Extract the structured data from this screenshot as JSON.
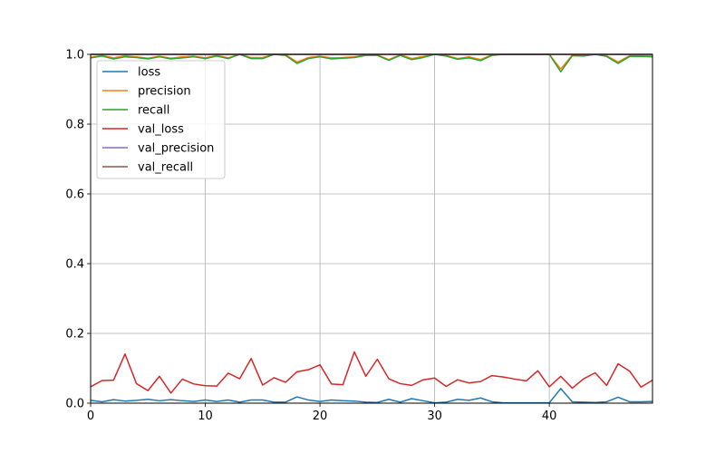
{
  "chart_data": {
    "type": "line",
    "title": "",
    "xlabel": "",
    "ylabel": "",
    "xlim": [
      0,
      49
    ],
    "ylim": [
      0.0,
      1.0
    ],
    "grid": true,
    "legend_position": "upper-left",
    "x_ticks": [
      "0",
      "10",
      "20",
      "30",
      "40"
    ],
    "y_ticks": [
      "0.0",
      "0.2",
      "0.4",
      "0.6",
      "0.8",
      "1.0"
    ],
    "x": [
      0,
      1,
      2,
      3,
      4,
      5,
      6,
      7,
      8,
      9,
      10,
      11,
      12,
      13,
      14,
      15,
      16,
      17,
      18,
      19,
      20,
      21,
      22,
      23,
      24,
      25,
      26,
      27,
      28,
      29,
      30,
      31,
      32,
      33,
      34,
      35,
      36,
      37,
      38,
      39,
      40,
      41,
      42,
      43,
      44,
      45,
      46,
      47,
      48,
      49
    ],
    "series": [
      {
        "name": "loss",
        "color": "#1f77b4",
        "values": [
          0.008,
          0.004,
          0.01,
          0.006,
          0.008,
          0.011,
          0.007,
          0.01,
          0.007,
          0.005,
          0.009,
          0.005,
          0.009,
          0.003,
          0.009,
          0.009,
          0.003,
          0.003,
          0.018,
          0.009,
          0.005,
          0.009,
          0.007,
          0.006,
          0.003,
          0.002,
          0.011,
          0.003,
          0.013,
          0.007,
          0.001,
          0.003,
          0.011,
          0.008,
          0.015,
          0.004,
          0.001,
          0.001,
          0.001,
          0.001,
          0.001,
          0.042,
          0.004,
          0.003,
          0.002,
          0.004,
          0.017,
          0.004,
          0.004,
          0.005
        ]
      },
      {
        "name": "precision",
        "color": "#ff7f0e",
        "values": [
          0.992,
          0.997,
          0.99,
          0.996,
          0.993,
          0.989,
          0.995,
          0.989,
          0.993,
          0.995,
          0.99,
          0.997,
          0.99,
          1.0,
          0.991,
          0.991,
          1.0,
          0.999,
          0.978,
          0.991,
          0.995,
          0.99,
          0.991,
          0.993,
          0.999,
          0.999,
          0.985,
          0.999,
          0.988,
          0.994,
          1.0,
          0.997,
          0.988,
          0.993,
          0.985,
          0.999,
          1.0,
          1.0,
          1.0,
          1.0,
          1.0,
          0.958,
          0.998,
          0.997,
          1.0,
          0.996,
          0.978,
          0.996,
          0.996,
          0.995
        ]
      },
      {
        "name": "recall",
        "color": "#2ca02c",
        "values": [
          0.99,
          0.995,
          0.987,
          0.993,
          0.991,
          0.987,
          0.993,
          0.987,
          0.99,
          0.993,
          0.988,
          0.995,
          0.988,
          1.0,
          0.988,
          0.988,
          1.0,
          0.997,
          0.974,
          0.988,
          0.993,
          0.987,
          0.989,
          0.991,
          0.997,
          0.997,
          0.983,
          0.997,
          0.985,
          0.991,
          1.0,
          0.995,
          0.986,
          0.99,
          0.982,
          0.997,
          1.0,
          1.0,
          1.0,
          1.0,
          1.0,
          0.95,
          0.996,
          0.995,
          1.0,
          0.994,
          0.974,
          0.994,
          0.994,
          0.993
        ]
      },
      {
        "name": "val_loss",
        "color": "#d62728",
        "values": [
          0.047,
          0.065,
          0.066,
          0.141,
          0.056,
          0.036,
          0.077,
          0.029,
          0.069,
          0.055,
          0.05,
          0.049,
          0.086,
          0.07,
          0.128,
          0.052,
          0.073,
          0.06,
          0.09,
          0.096,
          0.11,
          0.055,
          0.053,
          0.147,
          0.077,
          0.126,
          0.07,
          0.056,
          0.051,
          0.067,
          0.072,
          0.048,
          0.067,
          0.058,
          0.062,
          0.079,
          0.075,
          0.069,
          0.064,
          0.093,
          0.047,
          0.077,
          0.043,
          0.07,
          0.087,
          0.051,
          0.113,
          0.092,
          0.046,
          0.066
        ]
      },
      {
        "name": "val_precision",
        "color": "#9467bd",
        "values": [
          1.0,
          1.0,
          1.0,
          1.0,
          1.0,
          1.0,
          1.0,
          1.0,
          1.0,
          1.0,
          1.0,
          1.0,
          1.0,
          1.0,
          1.0,
          1.0,
          1.0,
          1.0,
          1.0,
          1.0,
          1.0,
          1.0,
          1.0,
          1.0,
          1.0,
          1.0,
          1.0,
          1.0,
          1.0,
          1.0,
          1.0,
          1.0,
          1.0,
          1.0,
          1.0,
          1.0,
          1.0,
          1.0,
          1.0,
          1.0,
          1.0,
          1.0,
          1.0,
          1.0,
          1.0,
          1.0,
          1.0,
          1.0,
          1.0,
          1.0
        ]
      },
      {
        "name": "val_recall",
        "color": "#8c564b",
        "values": [
          1.0,
          1.0,
          1.0,
          1.0,
          1.0,
          1.0,
          1.0,
          1.0,
          1.0,
          1.0,
          1.0,
          1.0,
          1.0,
          1.0,
          1.0,
          1.0,
          1.0,
          1.0,
          1.0,
          1.0,
          1.0,
          1.0,
          1.0,
          1.0,
          1.0,
          1.0,
          1.0,
          1.0,
          1.0,
          1.0,
          1.0,
          1.0,
          1.0,
          1.0,
          1.0,
          1.0,
          1.0,
          1.0,
          1.0,
          1.0,
          1.0,
          1.0,
          1.0,
          1.0,
          1.0,
          1.0,
          1.0,
          1.0,
          1.0,
          1.0
        ]
      }
    ]
  }
}
